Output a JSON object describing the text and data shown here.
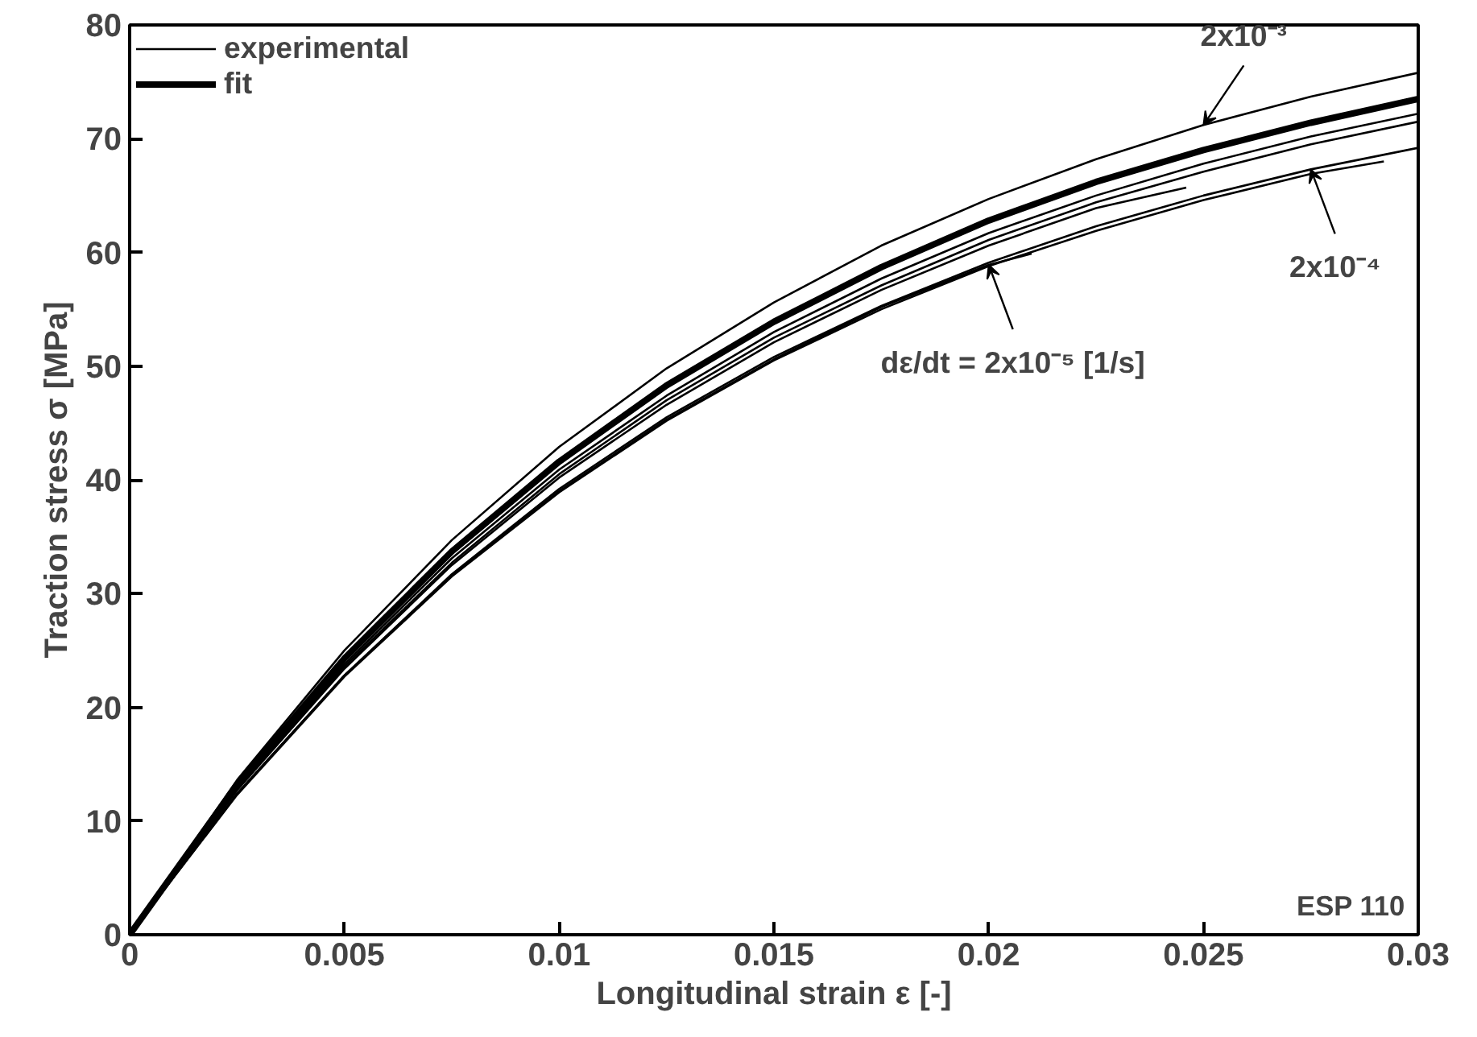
{
  "chart_data": {
    "type": "line",
    "xlabel": "Longitudinal strain ε [-]",
    "ylabel": "Traction stress σ [MPa]",
    "x": [
      0,
      0.0025,
      0.005,
      0.0075,
      0.01,
      0.0125,
      0.015,
      0.0175,
      0.02,
      0.0225,
      0.025,
      0.0275,
      0.03
    ],
    "series": [
      {
        "name": "experimental",
        "color": "#000000",
        "values": [
          0,
          13.6,
          25.0,
          34.7,
          42.9,
          49.8,
          55.6,
          60.6,
          64.7,
          68.2,
          71.2,
          73.7,
          75.8
        ]
      },
      {
        "color": "#000000",
        "values": [
          0,
          12.9,
          23.8,
          33.1,
          40.9,
          47.4,
          53.0,
          57.7,
          61.7,
          65.0,
          67.8,
          70.2,
          72.2
        ]
      },
      {
        "color": "#000000",
        "values": [
          0,
          12.8,
          23.6,
          32.7,
          40.5,
          47.0,
          52.5,
          57.1,
          61.1,
          64.4,
          67.1,
          69.5,
          71.5
        ]
      },
      {
        "color": "#000000",
        "values": [
          0,
          12.4,
          22.8,
          31.7,
          39.2,
          45.5,
          50.8,
          55.3,
          59.1,
          62.3,
          65.0,
          67.3,
          69.2
        ]
      },
      {
        "color": "#000000",
        "x": [
          0,
          0.0025,
          0.005,
          0.0075,
          0.01,
          0.0125,
          0.015,
          0.0175,
          0.02,
          0.0225,
          0.025,
          0.0275,
          0.0292
        ],
        "values": [
          0,
          12.3,
          22.7,
          31.5,
          38.9,
          45.2,
          50.5,
          55.0,
          58.8,
          61.9,
          64.6,
          66.9,
          68.0
        ]
      },
      {
        "color": "#000000",
        "x": [
          0,
          0.0025,
          0.005,
          0.0075,
          0.01,
          0.0125,
          0.015,
          0.0175,
          0.02,
          0.0225,
          0.0246
        ],
        "values": [
          0,
          12.7,
          23.4,
          32.5,
          40.2,
          46.6,
          52.1,
          56.7,
          60.6,
          63.9,
          65.7
        ]
      },
      {
        "color": "#000000",
        "x": [
          0,
          0.0025,
          0.005,
          0.0075,
          0.01,
          0.0125,
          0.015,
          0.0175,
          0.02,
          0.021
        ],
        "values": [
          0,
          12.4,
          22.8,
          31.6,
          39.0,
          45.3,
          50.6,
          55.2,
          58.9,
          59.9
        ]
      },
      {
        "name": "fit",
        "color": "#000000",
        "values": [
          0,
          13.2,
          24.3,
          33.7,
          41.6,
          48.3,
          53.9,
          58.7,
          62.8,
          66.2,
          69.0,
          71.4,
          73.5
        ]
      }
    ],
    "xlim": [
      0,
      0.03
    ],
    "ylim": [
      0,
      80
    ],
    "xticks": [
      0,
      0.005,
      0.01,
      0.015,
      0.02,
      0.025,
      0.03
    ],
    "yticks": [
      0,
      10,
      20,
      30,
      40,
      50,
      60,
      70,
      80
    ],
    "annotations": [
      {
        "text": "2x10⁻³",
        "x": 0.025,
        "y": 71.2
      },
      {
        "text": "2x10⁻⁴",
        "x": 0.0275,
        "y": 67.3
      },
      {
        "text": "dε/dt = 2x10⁻⁵ [1/s]",
        "x": 0.02,
        "y": 58.9
      },
      "ESP 110"
    ],
    "legend": "top left",
    "grid": false,
    "marker": "none",
    "line_style": "solid"
  }
}
